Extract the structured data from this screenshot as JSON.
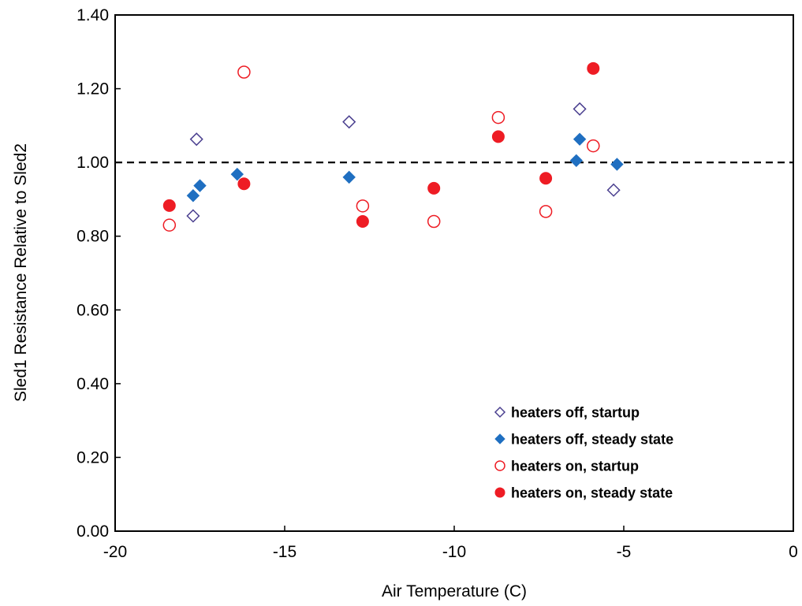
{
  "chart_data": {
    "type": "scatter",
    "title": "",
    "xlabel": "Air Temperature  (C)",
    "ylabel": "Sled1  Resistance  Relative to Sled2",
    "xlim": [
      -20,
      0
    ],
    "ylim": [
      0,
      1.4
    ],
    "x_ticks": [
      -20,
      -15,
      -10,
      -5,
      0
    ],
    "x_tick_labels": [
      "-20",
      "-15",
      "-10",
      "-5",
      "0"
    ],
    "y_ticks": [
      0,
      0.2,
      0.4,
      0.6,
      0.8,
      1.0,
      1.2,
      1.4
    ],
    "y_tick_labels": [
      "0.00",
      "0.20",
      "0.40",
      "0.60",
      "0.80",
      "1.00",
      "1.20",
      "1.40"
    ],
    "grid": false,
    "legend_position": "bottom-right",
    "reference_line": {
      "y": 1.0,
      "style": "dashed",
      "color": "#000000"
    },
    "series": [
      {
        "name": "heaters off, startup",
        "marker": "diamond-open",
        "color": "#4a3f8f",
        "points": [
          [
            -17.6,
            1.063
          ],
          [
            -17.7,
            0.855
          ],
          [
            -13.1,
            1.11
          ],
          [
            -6.3,
            1.145
          ],
          [
            -5.3,
            0.925
          ]
        ]
      },
      {
        "name": "heaters off, steady state",
        "marker": "diamond-filled",
        "color": "#1f6fc1",
        "points": [
          [
            -17.7,
            0.91
          ],
          [
            -17.5,
            0.937
          ],
          [
            -16.4,
            0.968
          ],
          [
            -13.1,
            0.96
          ],
          [
            -6.3,
            1.063
          ],
          [
            -6.4,
            1.005
          ],
          [
            -5.2,
            0.995
          ]
        ]
      },
      {
        "name": "heaters on, startup",
        "marker": "circle-open",
        "color": "#ee1c24",
        "points": [
          [
            -18.4,
            0.83
          ],
          [
            -16.2,
            1.245
          ],
          [
            -12.7,
            0.882
          ],
          [
            -10.6,
            0.84
          ],
          [
            -8.7,
            1.122
          ],
          [
            -7.3,
            0.867
          ],
          [
            -5.9,
            1.045
          ]
        ]
      },
      {
        "name": "heaters on, steady state",
        "marker": "circle-filled",
        "color": "#ee1c24",
        "points": [
          [
            -18.4,
            0.883
          ],
          [
            -16.2,
            0.942
          ],
          [
            -12.7,
            0.84
          ],
          [
            -10.6,
            0.93
          ],
          [
            -8.7,
            1.07
          ],
          [
            -7.3,
            0.957
          ],
          [
            -5.9,
            1.255
          ]
        ]
      }
    ]
  }
}
